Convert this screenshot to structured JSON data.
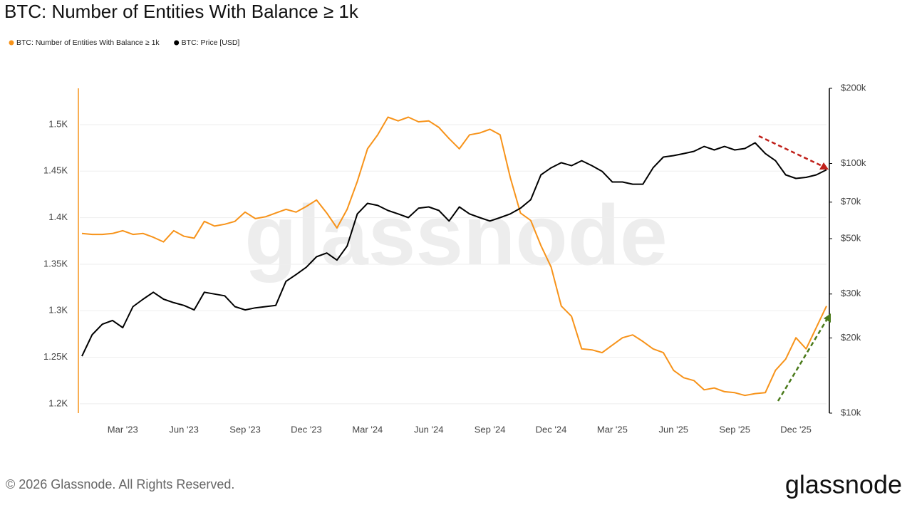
{
  "chart_data": {
    "type": "line",
    "title": "BTC: Number of Entities With Balance ≥ 1k",
    "categories": [
      null,
      null,
      null,
      null,
      "Mar '23",
      null,
      null,
      null,
      null,
      null,
      "Jun '23",
      null,
      null,
      null,
      null,
      null,
      "Sep '23",
      null,
      null,
      null,
      null,
      null,
      "Dec '23",
      null,
      null,
      null,
      null,
      null,
      "Mar '24",
      null,
      null,
      null,
      null,
      null,
      "Jun '24",
      null,
      null,
      null,
      null,
      null,
      "Sep '24",
      null,
      null,
      null,
      null,
      null,
      "Dec '24",
      null,
      null,
      null,
      null,
      null,
      "Mar '25",
      null,
      null,
      null,
      null,
      null,
      "Jun '25",
      null,
      null,
      null,
      null,
      null,
      "Sep '25",
      null,
      null,
      null,
      null,
      null,
      "Dec '25",
      null,
      null,
      null
    ],
    "series": [
      {
        "name": "BTC: Number of Entities With Balance ≥ 1k",
        "color": "#f7931a",
        "values": [
          1383,
          1382,
          1382,
          1383,
          1386,
          1382,
          1383,
          1379,
          1374,
          1386,
          1380,
          1378,
          1396,
          1391,
          1393,
          1396,
          1406,
          1399,
          1401,
          1405,
          1409,
          1406,
          1412,
          1419,
          1405,
          1389,
          1409,
          1439,
          1474,
          1489,
          1508,
          1504,
          1508,
          1503,
          1504,
          1497,
          1485,
          1474,
          1489,
          1491,
          1495,
          1489,
          1443,
          1405,
          1397,
          1370,
          1347,
          1305,
          1294,
          1259,
          1258,
          1255,
          1263,
          1271,
          1274,
          1267,
          1259,
          1255,
          1236,
          1228,
          1225,
          1215,
          1217,
          1213,
          1212,
          1209,
          1211,
          1212,
          1236,
          1248,
          1271,
          1259,
          1282,
          1305
        ]
      },
      {
        "name": "BTC: Price [USD]",
        "color": "#000000",
        "axis": "y2",
        "values": [
          16900,
          20600,
          22700,
          23500,
          22000,
          26700,
          28600,
          30500,
          28600,
          27700,
          27000,
          25900,
          30500,
          30000,
          29500,
          26700,
          25900,
          26400,
          26700,
          27000,
          33700,
          35900,
          38400,
          42300,
          43800,
          41000,
          46700,
          62800,
          69200,
          67900,
          64800,
          62800,
          60700,
          66200,
          67000,
          64800,
          58800,
          67000,
          62800,
          60700,
          58800,
          60700,
          62800,
          66200,
          71600,
          90000,
          96100,
          100700,
          98000,
          102600,
          98000,
          93000,
          84300,
          84300,
          82600,
          82600,
          96100,
          106100,
          107500,
          109600,
          111800,
          117000,
          113300,
          117000,
          113300,
          114800,
          121000,
          109600,
          102600,
          90000,
          87100,
          88000,
          90000,
          94300
        ]
      }
    ],
    "ylim": [
      1190,
      1539
    ],
    "yticks": [
      {
        "value": 1200,
        "label": "1.2K"
      },
      {
        "value": 1250,
        "label": "1.25K"
      },
      {
        "value": 1300,
        "label": "1.3K"
      },
      {
        "value": 1350,
        "label": "1.35K"
      },
      {
        "value": 1400,
        "label": "1.4K"
      },
      {
        "value": 1450,
        "label": "1.45K"
      },
      {
        "value": 1500,
        "label": "1.5K"
      }
    ],
    "y2lim": [
      10000,
      200000
    ],
    "y2ticks": [
      {
        "value": 10000,
        "label": "$10k"
      },
      {
        "value": 20000,
        "label": "$20k"
      },
      {
        "value": 30000,
        "label": "$30k"
      },
      {
        "value": 50000,
        "label": "$50k"
      },
      {
        "value": 70000,
        "label": "$70k"
      },
      {
        "value": 100000,
        "label": "$100k"
      },
      {
        "value": 200000,
        "label": "$200k"
      }
    ],
    "y2scale": "log",
    "grid": true
  },
  "watermark": "glassnode",
  "footer": {
    "copyright": "© 2026 Glassnode. All Rights Reserved.",
    "logo": "glassnode"
  }
}
